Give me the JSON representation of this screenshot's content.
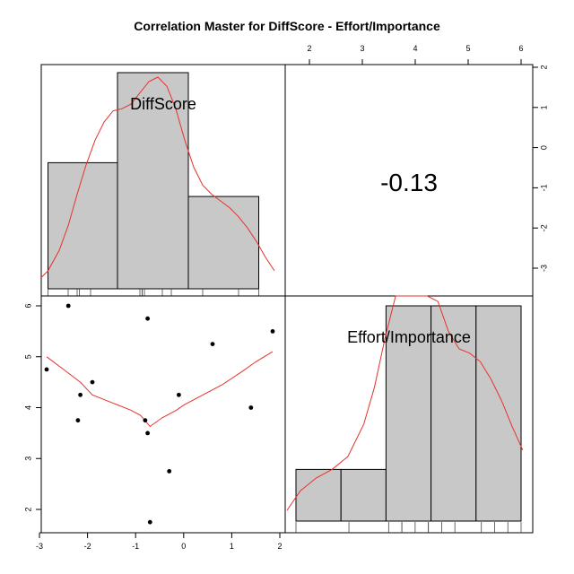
{
  "chart_data": {
    "type": "pairs",
    "title": "Correlation Master for DiffScore - Effort/Importance",
    "variables": [
      "DiffScore",
      "Effort/Importance"
    ],
    "correlation_label": "-0.13",
    "axes": {
      "bottom_ticks": [
        "-3",
        "-2",
        "-1",
        "0",
        "1",
        "2"
      ],
      "top_ticks": [
        "2",
        "3",
        "4",
        "5",
        "6"
      ],
      "right_ticks": [
        "-3",
        "-2",
        "-1",
        "0",
        "1",
        "2"
      ],
      "left_ticks": [
        "2",
        "3",
        "4",
        "5",
        "6"
      ],
      "diffscore_range": [
        -3,
        2.2
      ],
      "effort_range": [
        1.75,
        6.2
      ]
    },
    "scatter": {
      "x": [
        -2.85,
        -2.4,
        -2.2,
        -2.15,
        -1.9,
        -0.8,
        -0.75,
        -0.75,
        -0.7,
        -0.3,
        -0.1,
        0.6,
        1.4,
        1.85
      ],
      "y": [
        4.75,
        6.0,
        3.75,
        4.25,
        4.5,
        3.75,
        5.75,
        3.5,
        1.75,
        2.75,
        4.25,
        5.25,
        4.0,
        5.5
      ]
    },
    "scatter_smooth": {
      "x": [
        -2.85,
        -2.5,
        -2.15,
        -1.9,
        -1.5,
        -1.1,
        -0.9,
        -0.7,
        -0.45,
        -0.15,
        0,
        0.4,
        0.8,
        1.2,
        1.5,
        1.85
      ],
      "y": [
        5.0,
        4.75,
        4.5,
        4.25,
        4.1,
        3.95,
        3.85,
        3.63,
        3.8,
        3.95,
        4.05,
        4.25,
        4.45,
        4.7,
        4.9,
        5.1
      ]
    },
    "hist_diffscore": {
      "breaks": [
        -2.85,
        -1.3,
        0.28,
        1.85
      ],
      "heights": [
        0.56,
        0.96,
        0.41
      ],
      "density_x": [
        -3.0,
        -2.85,
        -2.6,
        -2.4,
        -2.2,
        -2.0,
        -1.8,
        -1.6,
        -1.4,
        -1.2,
        -1.0,
        -0.8,
        -0.6,
        -0.4,
        -0.2,
        0.0,
        0.2,
        0.4,
        0.6,
        0.8,
        1.0,
        1.2,
        1.4,
        1.6,
        1.8,
        2.0,
        2.2
      ],
      "density_y": [
        0.05,
        0.08,
        0.17,
        0.28,
        0.42,
        0.55,
        0.66,
        0.74,
        0.79,
        0.8,
        0.82,
        0.87,
        0.92,
        0.94,
        0.9,
        0.8,
        0.66,
        0.54,
        0.46,
        0.42,
        0.39,
        0.36,
        0.32,
        0.27,
        0.21,
        0.14,
        0.08
      ],
      "rug": [
        -2.85,
        -2.4,
        -2.2,
        -2.15,
        -1.9,
        -0.8,
        -0.75,
        -0.75,
        -0.7,
        -0.3,
        -0.1,
        0.6,
        1.4,
        1.85
      ]
    },
    "hist_effort": {
      "breaks": [
        1.75,
        2.6,
        3.45,
        4.3,
        5.15,
        6.0
      ],
      "heights": [
        0.24,
        0.24,
        1.0,
        1.0,
        1.0
      ],
      "density_x": [
        1.75,
        2.0,
        2.3,
        2.6,
        2.9,
        3.2,
        3.4,
        3.6,
        3.8,
        4.0,
        4.2,
        4.4,
        4.6,
        4.8,
        5.0,
        5.2,
        5.4,
        5.6,
        5.8,
        6.0,
        6.2
      ],
      "density_y": [
        0.05,
        0.14,
        0.2,
        0.24,
        0.3,
        0.45,
        0.62,
        0.85,
        1.05,
        1.18,
        1.22,
        1.16,
        1.02,
        0.88,
        0.8,
        0.78,
        0.74,
        0.66,
        0.56,
        0.44,
        0.33
      ],
      "rug": [
        1.75,
        2.75,
        3.5,
        3.75,
        3.75,
        4.0,
        4.25,
        4.25,
        4.5,
        4.75,
        5.25,
        5.5,
        5.75,
        6.0
      ]
    }
  }
}
